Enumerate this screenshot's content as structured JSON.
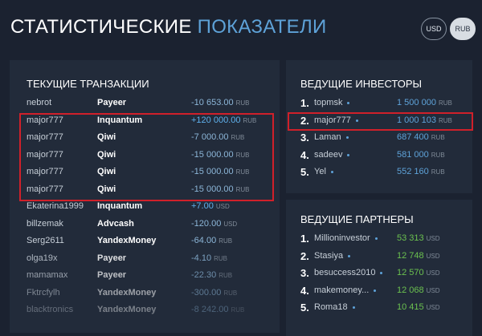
{
  "header": {
    "title_1": "СТАТИСТИЧЕСКИЕ",
    "title_2": "ПОКАЗАТЕЛИ",
    "currency_buttons": [
      "USD",
      "RUB"
    ]
  },
  "transactions": {
    "title": "ТЕКУЩИЕ ТРАНЗАКЦИИ",
    "rows": [
      [
        "nebrot",
        "Payeer",
        "-10 653.00",
        "RUB"
      ],
      [
        "major777",
        "Inquantum",
        "+120 000.00",
        "RUB"
      ],
      [
        "major777",
        "Qiwi",
        "-7 000.00",
        "RUB"
      ],
      [
        "major777",
        "Qiwi",
        "-15 000.00",
        "RUB"
      ],
      [
        "major777",
        "Qiwi",
        "-15 000.00",
        "RUB"
      ],
      [
        "major777",
        "Qiwi",
        "-15 000.00",
        "RUB"
      ],
      [
        "Ekaterina1999",
        "Inquantum",
        "+7.00",
        "USD"
      ],
      [
        "billzemak",
        "Advcash",
        "-120.00",
        "USD"
      ],
      [
        "Serg2611",
        "YandexMoney",
        "-64.00",
        "RUB"
      ],
      [
        "olga19x",
        "Payeer",
        "-4.10",
        "RUB"
      ],
      [
        "mamamax",
        "Payeer",
        "-22.30",
        "RUB"
      ],
      [
        "Fktrcfylh",
        "YandexMoney",
        "-300.00",
        "RUB"
      ],
      [
        "blacktronics",
        "YandexMoney",
        "-8 242.00",
        "RUB"
      ]
    ]
  },
  "investors": {
    "title": "ВЕДУЩИЕ ИНВЕСТОРЫ",
    "rows": [
      [
        "1.",
        "topmsk",
        "1 500 000",
        "RUB"
      ],
      [
        "2.",
        "major777",
        "1 000 103",
        "RUB"
      ],
      [
        "3.",
        "Laman",
        "687 400",
        "RUB"
      ],
      [
        "4.",
        "sadeev",
        "581 000",
        "RUB"
      ],
      [
        "5.",
        "Yel",
        "552 160",
        "RUB"
      ]
    ]
  },
  "partners": {
    "title": "ВЕДУЩИЕ ПАРТНЕРЫ",
    "rows": [
      [
        "1.",
        "Millioninvestor",
        "53 313",
        "USD"
      ],
      [
        "2.",
        "Stasiya",
        "12 748",
        "USD"
      ],
      [
        "3.",
        "besuccess2010",
        "12 570",
        "USD"
      ],
      [
        "4.",
        "makemoney...",
        "12 068",
        "USD"
      ],
      [
        "5.",
        "Roma18",
        "10 415",
        "USD"
      ]
    ]
  }
}
